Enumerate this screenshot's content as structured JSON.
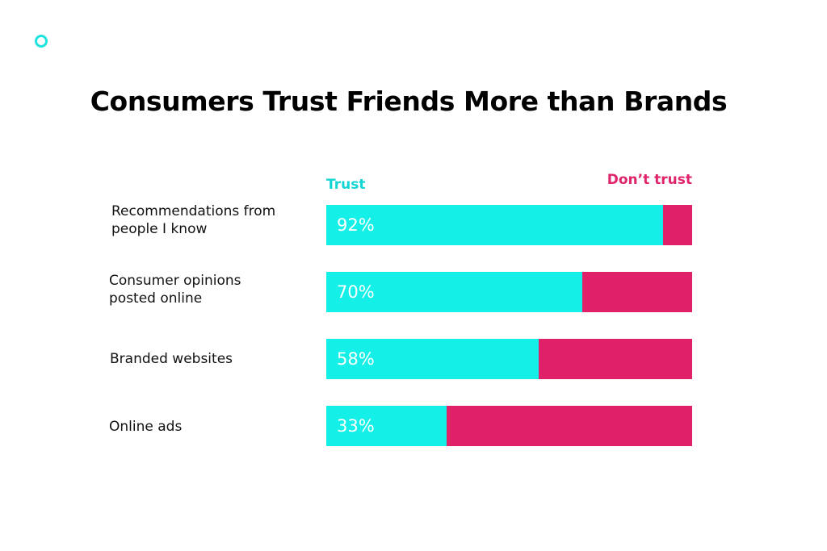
{
  "chart_data": {
    "type": "bar",
    "orientation": "horizontal",
    "stacked": true,
    "title": "Consumers Trust Friends More than Brands",
    "categories": [
      "Recommendations from\npeople I know",
      "Consumer opinions\nposted online",
      "Branded websites",
      "Online ads"
    ],
    "series": [
      {
        "name": "Trust",
        "values": [
          92,
          70,
          58,
          33
        ]
      },
      {
        "name": "Don’t trust",
        "values": [
          8,
          30,
          42,
          67
        ]
      }
    ],
    "value_labels": [
      "92%",
      "70%",
      "58%",
      "33%"
    ],
    "xlim": [
      0,
      100
    ],
    "unit": "%",
    "legend_position": "top"
  },
  "colors": {
    "trust": "#14efe8",
    "distrust": "#e0216a",
    "accent_ring": "#1ee3de"
  }
}
